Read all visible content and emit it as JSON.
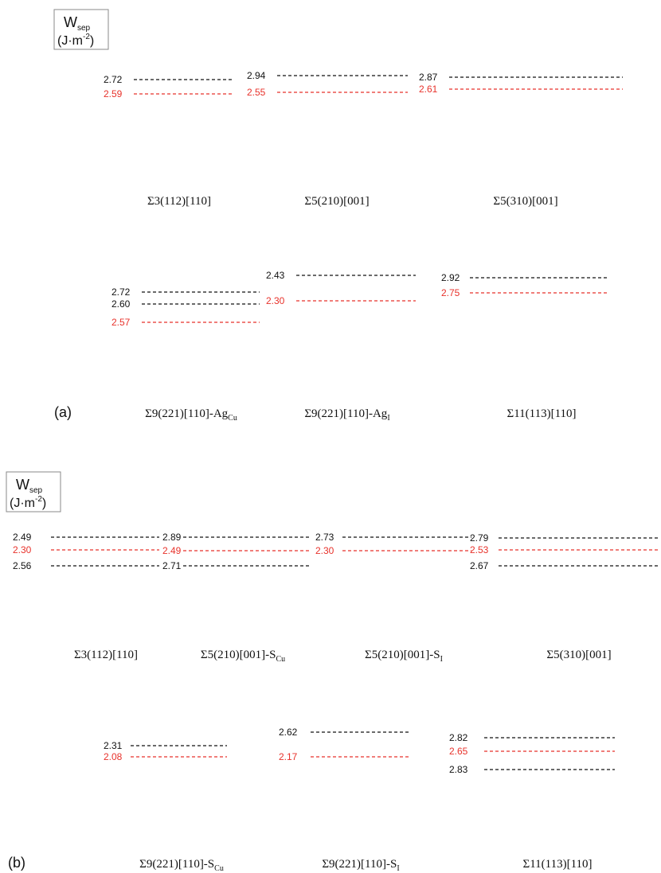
{
  "colors": {
    "cu_dark": "#27359a",
    "cu_light": "#5ad3da",
    "ag": "#9a9a9a",
    "s": "#e8e020",
    "value_black": "#111111",
    "value_red": "#e8322b"
  },
  "legend": {
    "symbol": "W",
    "subscript": "sep",
    "unit_main": "(J·m",
    "unit_exp": "-2",
    "unit_close": ")"
  },
  "panel_a": {
    "letter": "(a)",
    "cells": [
      {
        "caption": "Σ3(112)[110]",
        "values": [
          {
            "text": "2.72",
            "color": "black"
          },
          {
            "text": "2.59",
            "color": "red"
          }
        ]
      },
      {
        "caption": "Σ5(210)[001]",
        "values": [
          {
            "text": "2.94",
            "color": "black"
          },
          {
            "text": "2.55",
            "color": "red"
          }
        ]
      },
      {
        "caption": "Σ5(310)[001]",
        "values": [
          {
            "text": "2.87",
            "color": "black"
          },
          {
            "text": "2.61",
            "color": "red"
          }
        ]
      },
      {
        "caption": "Σ9(221)[110]-Ag",
        "caption_sub": "Cu",
        "values": [
          {
            "text": "2.72",
            "color": "black"
          },
          {
            "text": "2.60",
            "color": "black"
          },
          {
            "text": "2.57",
            "color": "red"
          }
        ]
      },
      {
        "caption": "Σ9(221)[110]-Ag",
        "caption_sub": "I",
        "values": [
          {
            "text": "2.43",
            "color": "black"
          },
          {
            "text": "2.30",
            "color": "red"
          }
        ]
      },
      {
        "caption": "Σ11(113)[110]",
        "values": [
          {
            "text": "2.92",
            "color": "black"
          },
          {
            "text": "2.75",
            "color": "red"
          }
        ]
      }
    ]
  },
  "panel_b": {
    "letter": "(b)",
    "cells": [
      {
        "caption": "Σ3(112)[110]",
        "values": [
          {
            "text": "2.49",
            "color": "black"
          },
          {
            "text": "2.30",
            "color": "red"
          },
          {
            "text": "2.56",
            "color": "black"
          }
        ]
      },
      {
        "caption": "Σ5(210)[001]-S",
        "caption_sub": "Cu",
        "values": [
          {
            "text": "2.89",
            "color": "black"
          },
          {
            "text": "2.49",
            "color": "red"
          },
          {
            "text": "2.71",
            "color": "black"
          }
        ]
      },
      {
        "caption": "Σ5(210)[001]-S",
        "caption_sub": "I",
        "values": [
          {
            "text": "2.73",
            "color": "black"
          },
          {
            "text": "2.30",
            "color": "red"
          }
        ]
      },
      {
        "caption": "Σ5(310)[001]",
        "values": [
          {
            "text": "2.79",
            "color": "black"
          },
          {
            "text": "2.53",
            "color": "red"
          },
          {
            "text": "2.67",
            "color": "black"
          }
        ]
      },
      {
        "caption": "Σ9(221)[110]-S",
        "caption_sub": "Cu",
        "values": [
          {
            "text": "2.31",
            "color": "black"
          },
          {
            "text": "2.08",
            "color": "red"
          }
        ]
      },
      {
        "caption": "Σ9(221)[110]-S",
        "caption_sub": "I",
        "values": [
          {
            "text": "2.62",
            "color": "black"
          },
          {
            "text": "2.17",
            "color": "red"
          }
        ]
      },
      {
        "caption": "Σ11(113)[110]",
        "values": [
          {
            "text": "2.82",
            "color": "black"
          },
          {
            "text": "2.65",
            "color": "red"
          },
          {
            "text": "2.83",
            "color": "black"
          }
        ]
      }
    ]
  }
}
